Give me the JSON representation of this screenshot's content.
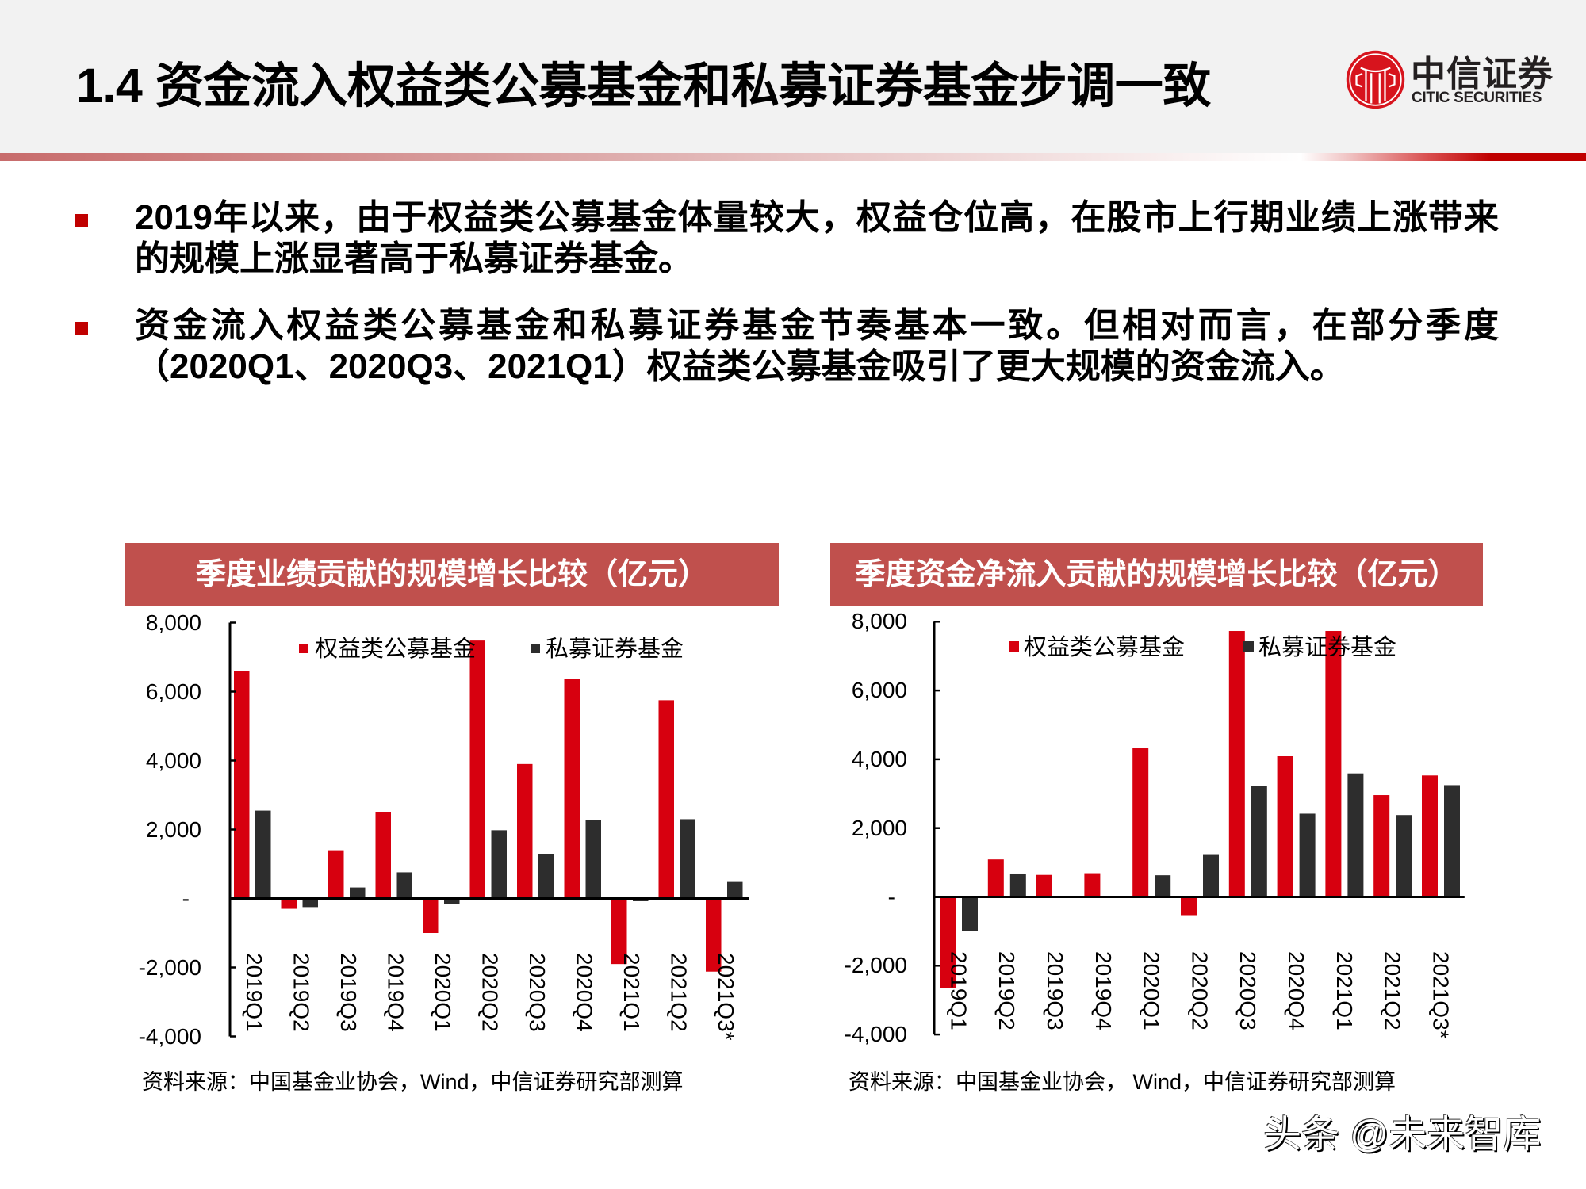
{
  "slide": {
    "title": "1.4 资金流入权益类公募基金和私募证券基金步调一致",
    "logo": {
      "icon": "citic-logo-icon",
      "cn": "中信证券",
      "en": "CITIC SECURITIES"
    }
  },
  "bullets": [
    {
      "marker": "red-square",
      "lines": [
        "2019年以来，由于权益类公募基金体量较大，权益仓位高，在股市上行期业绩上涨带来",
        "的规模上涨显著高于私募证券基金。"
      ]
    },
    {
      "marker": "red-square",
      "lines": [
        "资金流入权益类公募基金和私募证券基金节奏基本一致。但相对而言，在部分季度",
        "（2020Q1、2020Q3、2021Q1）权益类公募基金吸引了更大规模的资金流入。"
      ]
    }
  ],
  "colors": {
    "header_bg": "#f2f2f2",
    "accent_red": "#c00000",
    "chart_banner": "#c0504d",
    "series_equity_public": "#d7000f",
    "series_private_securities": "#2d2d2d"
  },
  "watermark": "头条 @未来智库",
  "chart_data": [
    {
      "type": "bar",
      "title": "季度业绩贡献的规模增长比较（亿元）",
      "xlabel": "",
      "ylabel": "亿元",
      "categories": [
        "2019Q1",
        "2019Q2",
        "2019Q3",
        "2019Q4",
        "2020Q1",
        "2020Q2",
        "2020Q3",
        "2020Q4",
        "2021Q1",
        "2021Q2",
        "2021Q3*"
      ],
      "series": [
        {
          "name": "权益类公募基金",
          "color": "#d7000f",
          "values": [
            6600,
            -300,
            1400,
            2500,
            -1000,
            7480,
            3900,
            6370,
            -1900,
            5750,
            -2120
          ]
        },
        {
          "name": "私募证券基金",
          "color": "#2d2d2d",
          "values": [
            2550,
            -250,
            320,
            760,
            -150,
            1980,
            1280,
            2280,
            -80,
            2300,
            480
          ]
        }
      ],
      "ylim": [
        -4000,
        8000
      ],
      "yticks": [
        8000,
        6000,
        4000,
        2000,
        0,
        -2000,
        -4000
      ],
      "ytick_labels": [
        "8,000",
        "6,000",
        "4,000",
        "2,000",
        "-",
        "-2,000",
        "-4,000"
      ],
      "grid": false,
      "legend_position": "top-inside",
      "source": "资料来源：中国基金业协会，Wind，中信证券研究部测算"
    },
    {
      "type": "bar",
      "title": "季度资金净流入贡献的规模增长比较（亿元）",
      "xlabel": "",
      "ylabel": "亿元",
      "categories": [
        "2019Q1",
        "2019Q2",
        "2019Q3",
        "2019Q4",
        "2020Q1",
        "2020Q2",
        "2020Q3",
        "2020Q4",
        "2021Q1",
        "2021Q2",
        "2021Q3*"
      ],
      "series": [
        {
          "name": "权益类公募基金",
          "color": "#d7000f",
          "values": [
            -2660,
            1090,
            640,
            690,
            4320,
            -530,
            7730,
            4090,
            7730,
            2960,
            3530
          ]
        },
        {
          "name": "私募证券基金",
          "color": "#2d2d2d",
          "values": [
            -980,
            680,
            0,
            0,
            630,
            1220,
            3230,
            2420,
            3590,
            2380,
            3250
          ]
        }
      ],
      "ylim": [
        -4000,
        8000
      ],
      "yticks": [
        8000,
        6000,
        4000,
        2000,
        0,
        -2000,
        -4000
      ],
      "ytick_labels": [
        "8,000",
        "6,000",
        "4,000",
        "2,000",
        "-",
        "-2,000",
        "-4,000"
      ],
      "grid": false,
      "legend_position": "top-inside",
      "source": "资料来源：中国基金业协会， Wind，中信证券研究部测算"
    }
  ]
}
